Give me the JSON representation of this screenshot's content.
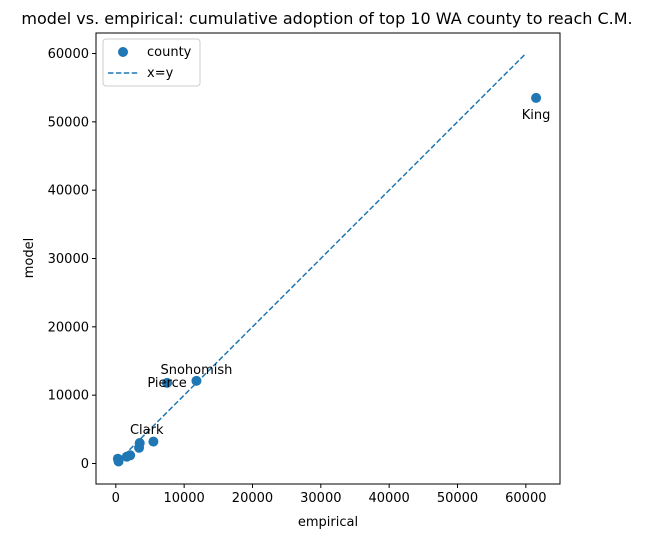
{
  "chart_data": {
    "type": "scatter",
    "title": "model vs. empirical: cumulative adoption of top 10 WA county to reach C.M.",
    "xlabel": "empirical",
    "ylabel": "model",
    "xlim": [
      -2900,
      65000
    ],
    "ylim": [
      -3000,
      63000
    ],
    "xticks": [
      0,
      10000,
      20000,
      30000,
      40000,
      50000,
      60000
    ],
    "yticks": [
      0,
      10000,
      20000,
      30000,
      40000,
      50000,
      60000
    ],
    "xtick_labels": [
      "0",
      "10000",
      "20000",
      "30000",
      "40000",
      "50000",
      "60000"
    ],
    "ytick_labels": [
      "0",
      "10000",
      "20000",
      "30000",
      "40000",
      "50000",
      "60000"
    ],
    "series": [
      {
        "name": "county",
        "kind": "scatter",
        "color": "#1f77b4",
        "points": [
          {
            "x": 61500,
            "y": 53500,
            "label": "King"
          },
          {
            "x": 11800,
            "y": 12100,
            "label": "Snohomish"
          },
          {
            "x": 7500,
            "y": 11800,
            "label": "Pierce"
          },
          {
            "x": 3500,
            "y": 3000,
            "label": "Clark"
          },
          {
            "x": 5500,
            "y": 3200,
            "label": ""
          },
          {
            "x": 3400,
            "y": 2300,
            "label": ""
          },
          {
            "x": 2100,
            "y": 1200,
            "label": ""
          },
          {
            "x": 1600,
            "y": 1000,
            "label": ""
          },
          {
            "x": 300,
            "y": 700,
            "label": ""
          },
          {
            "x": 400,
            "y": 300,
            "label": ""
          }
        ]
      },
      {
        "name": "x=y",
        "kind": "line",
        "style": "dashed",
        "color": "#1f77b4",
        "x": [
          2000,
          60000
        ],
        "y": [
          2000,
          60000
        ]
      }
    ],
    "legend": {
      "position": "top-left",
      "entries": [
        "county",
        "x=y"
      ]
    }
  }
}
